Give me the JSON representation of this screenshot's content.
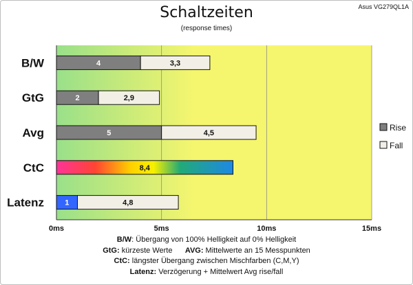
{
  "header": {
    "title": "Schaltzeiten",
    "subtitle": "(response times)",
    "model": "Asus VG279QL1A"
  },
  "chart_data": {
    "type": "bar",
    "orientation": "horizontal",
    "stacked": true,
    "categories": [
      "B/W",
      "GtG",
      "Avg",
      "CtC",
      "Latenz"
    ],
    "series": [
      {
        "name": "Rise",
        "values": [
          4,
          2,
          5,
          null,
          1
        ],
        "labels": [
          "4",
          "2",
          "5",
          "",
          "1"
        ]
      },
      {
        "name": "Fall",
        "values": [
          3.3,
          2.9,
          4.5,
          null,
          4.8
        ],
        "labels": [
          "3,3",
          "2,9",
          "4,5",
          "",
          "4,8"
        ]
      }
    ],
    "ctc": {
      "category": "CtC",
      "value": 8.4,
      "label": "8,4"
    },
    "latenz_segment_color": "#3366ff",
    "rise_color": "#7f7f7f",
    "fall_color": "#f2efe6",
    "xlim": [
      0,
      15
    ],
    "xticks": [
      "0ms",
      "5ms",
      "10ms",
      "15ms"
    ],
    "grid": true,
    "legend_position": "right",
    "background_gradient": [
      "#99e08a",
      "#c8ea7a",
      "#f6f66e"
    ]
  },
  "notes": [
    {
      "key": "B/W",
      "text": ":  Übergang von 100% Helligkeit auf 0% Helligkeit"
    },
    {
      "key": "GtG:",
      "text": " kürzeste  Werte",
      "key2": "AVG:",
      "text2": " Mittelwerte  an 15 Messpunkten"
    },
    {
      "key": "CtC:",
      "text": " längster Übergang  zwischen Mischfarben (C,M,Y)"
    },
    {
      "key": "Latenz:",
      "text": " Verzögerung  + Mittelwert  Avg rise/fall"
    }
  ]
}
